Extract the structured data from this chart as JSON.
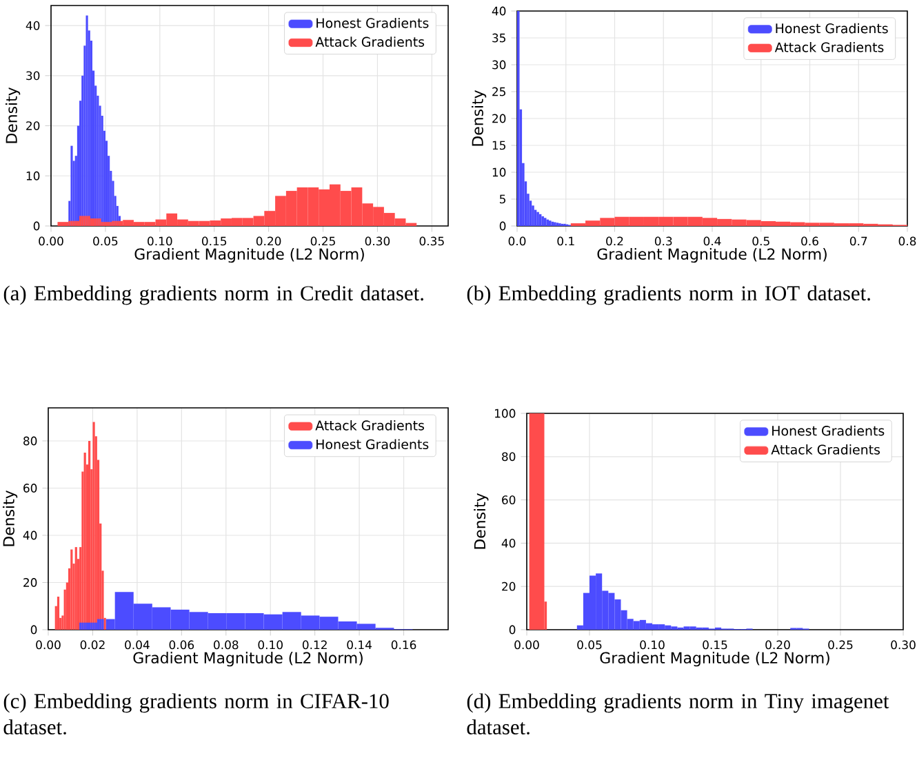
{
  "chart_data": [
    {
      "type": "histogram",
      "xlabel": "Gradient Magnitude (L2 Norm)",
      "ylabel": "Density",
      "xlim": [
        0,
        0.365
      ],
      "ylim": [
        0,
        44
      ],
      "xticks": [
        {
          "value": 0,
          "label": "0.00"
        },
        {
          "value": 0.05,
          "label": "0.05"
        },
        {
          "value": 0.1,
          "label": "0.10"
        },
        {
          "value": 0.15,
          "label": "0.15"
        },
        {
          "value": 0.2,
          "label": "0.20"
        },
        {
          "value": 0.25,
          "label": "0.25"
        },
        {
          "value": 0.3,
          "label": "0.30"
        },
        {
          "value": 0.35,
          "label": "0.35"
        }
      ],
      "yticks": [
        0,
        10,
        20,
        30,
        40
      ],
      "grid": true,
      "legend": "top right",
      "annotations": [
        "(a) Embedding gradients norm in Credit dataset."
      ],
      "bins": [
        0.006,
        0.016,
        0.018,
        0.02,
        0.022,
        0.024,
        0.026,
        0.028,
        0.03,
        0.032,
        0.034,
        0.036,
        0.038,
        0.04,
        0.042,
        0.044,
        0.046,
        0.048,
        0.05,
        0.052,
        0.054,
        0.056,
        0.058,
        0.06,
        0.062,
        0.064,
        0.066,
        0.076,
        0.086,
        0.096,
        0.106,
        0.116,
        0.126,
        0.136,
        0.146,
        0.156,
        0.166,
        0.176,
        0.186,
        0.196,
        0.206,
        0.216,
        0.226,
        0.236,
        0.246,
        0.256,
        0.266,
        0.276,
        0.286,
        0.296,
        0.306,
        0.316,
        0.326,
        0.336
      ],
      "series": [
        {
          "name": "Honest Gradients",
          "color": "#4c4cff",
          "values": [
            null,
            5,
            16,
            13,
            14,
            20,
            25,
            30,
            36,
            42,
            39,
            37,
            31,
            28,
            26,
            24,
            22,
            19,
            17,
            14,
            11,
            9,
            6,
            4,
            2,
            null,
            null,
            null,
            null,
            null,
            null,
            null,
            null,
            null,
            null,
            null,
            null,
            null,
            null,
            null,
            null,
            null,
            null,
            null,
            null,
            null,
            null,
            null,
            null,
            null,
            null,
            null,
            null
          ]
        },
        {
          "name": "Attack Gradients",
          "color": "#ff4c4c",
          "values": [
            0.8,
            1,
            1,
            1,
            1,
            1,
            2,
            2,
            2,
            2,
            2,
            1.5,
            1.5,
            1.5,
            1.5,
            1.5,
            0.8,
            0.8,
            0.8,
            0.8,
            0.8,
            1,
            1,
            1,
            1,
            1,
            1.2,
            0.8,
            0.8,
            1.3,
            2.5,
            1.3,
            1,
            1,
            1.1,
            1.5,
            1.6,
            1.6,
            2,
            3,
            6,
            7,
            7.7,
            7.7,
            7.3,
            8.3,
            7,
            7.7,
            4.5,
            3.8,
            2.6,
            1.5,
            0.6
          ]
        }
      ]
    },
    {
      "type": "histogram",
      "xlabel": "Gradient Magnitude (L2 Norm)",
      "ylabel": "Density",
      "xlim": [
        0,
        0.8
      ],
      "ylim": [
        0,
        40
      ],
      "xticks": [
        {
          "value": 0,
          "label": "0.0"
        },
        {
          "value": 0.1,
          "label": "0.1"
        },
        {
          "value": 0.2,
          "label": "0.2"
        },
        {
          "value": 0.3,
          "label": "0.3"
        },
        {
          "value": 0.4,
          "label": "0.4"
        },
        {
          "value": 0.5,
          "label": "0.5"
        },
        {
          "value": 0.6,
          "label": "0.6"
        },
        {
          "value": 0.7,
          "label": "0.7"
        },
        {
          "value": 0.8,
          "label": "0.8"
        }
      ],
      "yticks": [
        0,
        5,
        10,
        15,
        20,
        25,
        30,
        35,
        40
      ],
      "grid": true,
      "legend": "top right",
      "annotations": [
        "(b) Embedding gradients norm in IOT dataset."
      ],
      "bins": [
        0,
        0.005,
        0.01,
        0.015,
        0.02,
        0.025,
        0.03,
        0.035,
        0.04,
        0.045,
        0.05,
        0.055,
        0.06,
        0.065,
        0.07,
        0.075,
        0.08,
        0.085,
        0.09,
        0.095,
        0.1,
        0.105,
        0.11,
        0.14,
        0.17,
        0.2,
        0.23,
        0.26,
        0.29,
        0.32,
        0.35,
        0.38,
        0.41,
        0.44,
        0.47,
        0.5,
        0.53,
        0.56,
        0.59,
        0.62,
        0.65,
        0.68,
        0.71,
        0.74,
        0.77,
        0.8
      ],
      "series": [
        {
          "name": "Honest Gradients",
          "color": "#4c4cff",
          "values": [
            40,
            21.7,
            11.7,
            8.3,
            6,
            4.7,
            3.8,
            3,
            2.6,
            2.2,
            1.8,
            1.5,
            1.2,
            1,
            0.8,
            0.7,
            0.6,
            0.5,
            0.4,
            0.4,
            0.3,
            0.2,
            null,
            null,
            null,
            null,
            null,
            null,
            null,
            null,
            null,
            null,
            null,
            null,
            null,
            null,
            null,
            null,
            null,
            null,
            null,
            null,
            null,
            null,
            null
          ]
        },
        {
          "name": "Attack Gradients",
          "color": "#ff4c4c",
          "values": [
            null,
            null,
            null,
            null,
            null,
            null,
            null,
            null,
            null,
            null,
            null,
            null,
            null,
            null,
            null,
            null,
            null,
            null,
            null,
            null,
            null,
            null,
            0.5,
            1,
            1.5,
            1.7,
            1.7,
            1.7,
            1.7,
            1.7,
            1.7,
            1.5,
            1.3,
            1.2,
            1.1,
            0.9,
            0.8,
            0.7,
            0.6,
            0.6,
            0.5,
            0.5,
            0.4,
            0.3,
            0.2
          ]
        }
      ]
    },
    {
      "type": "histogram",
      "xlabel": "Gradient Magnitude (L2 Norm)",
      "ylabel": "Density",
      "xlim": [
        0,
        0.18
      ],
      "ylim": [
        0,
        94
      ],
      "xticks": [
        {
          "value": 0,
          "label": "0.00"
        },
        {
          "value": 0.02,
          "label": "0.02"
        },
        {
          "value": 0.04,
          "label": "0.04"
        },
        {
          "value": 0.06,
          "label": "0.06"
        },
        {
          "value": 0.08,
          "label": "0.08"
        },
        {
          "value": 0.1,
          "label": "0.10"
        },
        {
          "value": 0.12,
          "label": "0.12"
        },
        {
          "value": 0.14,
          "label": "0.14"
        },
        {
          "value": 0.16,
          "label": "0.16"
        }
      ],
      "yticks": [
        0,
        20,
        40,
        60,
        80
      ],
      "grid": true,
      "legend": "top right",
      "annotations": [
        "(c) Embedding gradients norm in CIFAR-10 dataset."
      ],
      "bins": [
        0.003,
        0.004,
        0.005,
        0.006,
        0.007,
        0.008,
        0.009,
        0.01,
        0.011,
        0.012,
        0.013,
        0.014,
        0.015,
        0.016,
        0.017,
        0.018,
        0.019,
        0.02,
        0.021,
        0.022,
        0.023,
        0.024,
        0.025,
        0.026,
        0.03,
        0.0384,
        0.0468,
        0.0551,
        0.0635,
        0.0719,
        0.0803,
        0.0886,
        0.097,
        0.1054,
        0.1138,
        0.1221,
        0.1305,
        0.1389,
        0.1473,
        0.1556,
        0.164
      ],
      "series": [
        {
          "name": "Attack Gradients",
          "color": "#ff4c4c",
          "values": [
            10,
            14,
            5,
            6,
            17,
            20,
            26,
            34,
            28,
            35,
            30,
            35,
            67,
            75,
            70,
            80,
            68,
            88,
            82,
            72,
            45,
            25,
            5,
            null,
            null,
            null,
            null,
            null,
            null,
            null,
            null,
            null,
            null,
            null,
            null,
            null,
            null,
            null,
            null,
            null
          ]
        },
        {
          "name": "Honest Gradients",
          "color": "#4c4cff",
          "values": [
            null,
            null,
            null,
            null,
            null,
            null,
            null,
            null,
            null,
            null,
            null,
            3,
            3,
            3,
            3,
            3,
            3,
            3,
            3,
            4.5,
            4.5,
            4.5,
            null,
            4.5,
            16,
            11,
            9.5,
            8.5,
            7.5,
            7,
            7,
            7,
            6.5,
            7.5,
            6,
            5.5,
            3.5,
            2.5,
            0.8,
            0.2
          ]
        }
      ]
    },
    {
      "type": "histogram",
      "xlabel": "Gradient Magnitude (L2 Norm)",
      "ylabel": "Density",
      "xlim": [
        0,
        0.3
      ],
      "ylim": [
        0,
        100
      ],
      "xticks": [
        {
          "value": 0,
          "label": "0.00"
        },
        {
          "value": 0.05,
          "label": "0.05"
        },
        {
          "value": 0.1,
          "label": "0.10"
        },
        {
          "value": 0.15,
          "label": "0.15"
        },
        {
          "value": 0.2,
          "label": "0.20"
        },
        {
          "value": 0.25,
          "label": "0.25"
        },
        {
          "value": 0.3,
          "label": "0.30"
        }
      ],
      "yticks": [
        0,
        20,
        40,
        60,
        80,
        100
      ],
      "grid": true,
      "legend": "top right",
      "annotations": [
        "(d) Embedding gradients norm in Tiny imagenet dataset."
      ],
      "bins": [
        0.002,
        0.014,
        0.016,
        0.04,
        0.045,
        0.05,
        0.055,
        0.06,
        0.065,
        0.07,
        0.075,
        0.08,
        0.085,
        0.09,
        0.095,
        0.1,
        0.105,
        0.11,
        0.115,
        0.12,
        0.125,
        0.13,
        0.135,
        0.14,
        0.145,
        0.15,
        0.155,
        0.16,
        0.165,
        0.17,
        0.175,
        0.18,
        0.21,
        0.215,
        0.22,
        0.225
      ],
      "series": [
        {
          "name": "Honest Gradients",
          "color": "#4c4cff",
          "values": [
            null,
            null,
            null,
            2,
            17,
            25,
            26,
            18,
            17,
            14,
            9,
            5,
            4,
            4.5,
            3,
            2.5,
            2.5,
            2,
            1.5,
            1,
            1.5,
            1.5,
            1,
            1,
            0.5,
            1,
            0.5,
            0.5,
            0.3,
            0.3,
            0.5,
            null,
            0.8,
            0.8,
            0.5
          ]
        },
        {
          "name": "Attack Gradients",
          "color": "#ff4c4c",
          "values": [
            100,
            13,
            null,
            null,
            null,
            null,
            null,
            null,
            null,
            null,
            null,
            null,
            null,
            null,
            null,
            null,
            null,
            null,
            null,
            null,
            null,
            null,
            null,
            null,
            null,
            null,
            null,
            null,
            null,
            null,
            null,
            null,
            null,
            null,
            null
          ]
        }
      ]
    }
  ]
}
